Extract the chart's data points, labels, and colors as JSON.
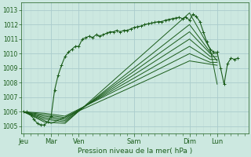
{
  "xlabel": "Pression niveau de la mer( hPa )",
  "bg_color": "#cce8e0",
  "grid_major_color": "#aacccc",
  "grid_minor_color": "#c0ddd8",
  "line_color": "#1a5c1a",
  "ylim": [
    1004.5,
    1013.5
  ],
  "yticks": [
    1005,
    1006,
    1007,
    1008,
    1009,
    1010,
    1011,
    1012,
    1013
  ],
  "xlim": [
    -2,
    195
  ],
  "xtick_labels": [
    "Jeu",
    "Mar",
    "Ven",
    "Sam",
    "Dim",
    "Lun"
  ],
  "xtick_positions": [
    0,
    24,
    48,
    96,
    144,
    168
  ],
  "fan_lines": [
    [
      [
        0,
        1006.0
      ],
      [
        18,
        1005.3
      ],
      [
        36,
        1005.2
      ],
      [
        144,
        1012.8
      ],
      [
        162,
        1010.3
      ],
      [
        168,
        1007.9
      ]
    ],
    [
      [
        0,
        1006.0
      ],
      [
        18,
        1005.5
      ],
      [
        36,
        1005.3
      ],
      [
        144,
        1012.0
      ],
      [
        162,
        1010.1
      ],
      [
        168,
        1009.5
      ]
    ],
    [
      [
        0,
        1006.0
      ],
      [
        18,
        1005.6
      ],
      [
        36,
        1005.4
      ],
      [
        144,
        1011.5
      ],
      [
        162,
        1010.0
      ],
      [
        168,
        1010.0
      ]
    ],
    [
      [
        0,
        1006.0
      ],
      [
        18,
        1005.7
      ],
      [
        36,
        1005.5
      ],
      [
        144,
        1011.0
      ],
      [
        162,
        1009.8
      ],
      [
        168,
        1009.8
      ]
    ],
    [
      [
        0,
        1006.0
      ],
      [
        18,
        1005.8
      ],
      [
        36,
        1005.6
      ],
      [
        144,
        1010.5
      ],
      [
        162,
        1009.6
      ],
      [
        168,
        1009.6
      ]
    ],
    [
      [
        0,
        1006.0
      ],
      [
        18,
        1005.9
      ],
      [
        36,
        1005.7
      ],
      [
        144,
        1010.0
      ],
      [
        162,
        1009.4
      ],
      [
        168,
        1009.4
      ]
    ],
    [
      [
        0,
        1006.0
      ],
      [
        24,
        1005.2
      ],
      [
        144,
        1009.5
      ],
      [
        168,
        1009.2
      ]
    ]
  ],
  "detailed_line": [
    [
      0,
      1006.0
    ],
    [
      3,
      1006.0
    ],
    [
      6,
      1005.8
    ],
    [
      9,
      1005.5
    ],
    [
      12,
      1005.2
    ],
    [
      15,
      1005.1
    ],
    [
      18,
      1005.1
    ],
    [
      21,
      1005.3
    ],
    [
      24,
      1005.7
    ],
    [
      27,
      1007.5
    ],
    [
      30,
      1008.5
    ],
    [
      33,
      1009.2
    ],
    [
      36,
      1009.8
    ],
    [
      39,
      1010.1
    ],
    [
      42,
      1010.3
    ],
    [
      45,
      1010.5
    ],
    [
      48,
      1010.5
    ],
    [
      51,
      1011.0
    ],
    [
      54,
      1011.1
    ],
    [
      57,
      1011.2
    ],
    [
      60,
      1011.1
    ],
    [
      63,
      1011.3
    ],
    [
      66,
      1011.2
    ],
    [
      69,
      1011.3
    ],
    [
      72,
      1011.4
    ],
    [
      75,
      1011.5
    ],
    [
      78,
      1011.5
    ],
    [
      81,
      1011.6
    ],
    [
      84,
      1011.5
    ],
    [
      87,
      1011.6
    ],
    [
      90,
      1011.6
    ],
    [
      93,
      1011.7
    ],
    [
      96,
      1011.8
    ],
    [
      99,
      1011.85
    ],
    [
      102,
      1011.9
    ],
    [
      105,
      1012.0
    ],
    [
      108,
      1012.05
    ],
    [
      111,
      1012.1
    ],
    [
      114,
      1012.15
    ],
    [
      117,
      1012.2
    ],
    [
      120,
      1012.2
    ],
    [
      123,
      1012.3
    ],
    [
      126,
      1012.35
    ],
    [
      129,
      1012.4
    ],
    [
      132,
      1012.45
    ],
    [
      135,
      1012.5
    ],
    [
      138,
      1012.4
    ],
    [
      141,
      1012.5
    ],
    [
      144,
      1012.3
    ],
    [
      147,
      1012.7
    ],
    [
      150,
      1012.55
    ],
    [
      153,
      1012.2
    ],
    [
      156,
      1011.5
    ],
    [
      159,
      1010.8
    ],
    [
      162,
      1010.3
    ],
    [
      165,
      1010.1
    ],
    [
      168,
      1010.1
    ],
    [
      171,
      1009.0
    ],
    [
      174,
      1007.9
    ],
    [
      177,
      1009.3
    ],
    [
      180,
      1009.7
    ],
    [
      183,
      1009.6
    ],
    [
      186,
      1009.7
    ]
  ]
}
